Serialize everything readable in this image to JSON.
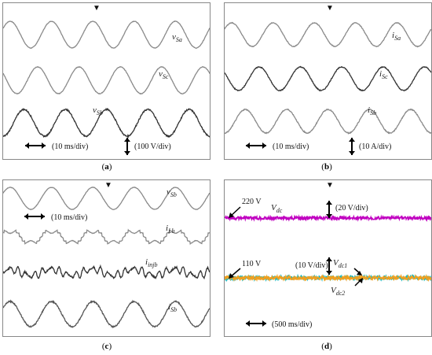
{
  "colors": {
    "gray_trace": "#8a8a8a",
    "dark_trace": "#333333",
    "magenta": "#c000c0",
    "cyan": "#18b8c0",
    "orange": "#f0a020"
  },
  "chart_data": [
    {
      "type": "line",
      "panel": "a",
      "caption_open": "(",
      "caption_letter": "a",
      "caption_close": ")",
      "series": [
        {
          "name": "v",
          "sub": "Sa",
          "shape": "sine",
          "amplitude": 100,
          "cycles": 5,
          "phase": 0.5,
          "color": "#8a8a8a",
          "noise": 0.02
        },
        {
          "name": "v",
          "sub": "Sc",
          "shape": "sine",
          "amplitude": 100,
          "cycles": 5,
          "phase": 2.6,
          "color": "#8a8a8a",
          "noise": 0.02
        },
        {
          "name": "v",
          "sub": "Sb",
          "shape": "sine",
          "amplitude": 100,
          "cycles": 5,
          "phase": 4.7,
          "color": "#333333",
          "noise": 0.05
        }
      ],
      "annotations": [
        "(10 ms/div)",
        "(100 V/div)"
      ],
      "grid": false
    },
    {
      "type": "line",
      "panel": "b",
      "caption_open": "(",
      "caption_letter": "b",
      "caption_close": ")",
      "series": [
        {
          "name": "i",
          "sub": "Sa",
          "shape": "sine",
          "amplitude": 10,
          "cycles": 5,
          "phase": 0.5,
          "color": "#8a8a8a",
          "noise": 0.03
        },
        {
          "name": "i",
          "sub": "Sc",
          "shape": "sine",
          "amplitude": 10,
          "cycles": 5,
          "phase": 2.6,
          "color": "#333333",
          "noise": 0.04
        },
        {
          "name": "i",
          "sub": "Sb",
          "shape": "sine",
          "amplitude": 10,
          "cycles": 5,
          "phase": 4.7,
          "color": "#8a8a8a",
          "noise": 0.04
        }
      ],
      "annotations": [
        "(10 ms/div)",
        "(10 A/div)"
      ],
      "grid": false
    },
    {
      "type": "line",
      "panel": "c",
      "caption_open": "(",
      "caption_letter": "c",
      "caption_close": ")",
      "series": [
        {
          "name": "v",
          "sub": "Sb",
          "shape": "sine",
          "amplitude": 100,
          "cycles": 5,
          "phase": 0.5,
          "color": "#8a8a8a",
          "noise": 0.02
        },
        {
          "name": "i",
          "sub": "Lb",
          "shape": "stepped",
          "amplitude": 10,
          "cycles": 5,
          "phase": 0.5,
          "color": "#8a8a8a",
          "noise": 0.04
        },
        {
          "name": "i",
          "sub": "injb",
          "shape": "ripple",
          "amplitude": 10,
          "cycles": 5,
          "phase": 0.5,
          "color": "#333333",
          "noise": 0.12
        },
        {
          "name": "i",
          "sub": "Sb",
          "shape": "sine",
          "amplitude": 10,
          "cycles": 5,
          "phase": 0.5,
          "color": "#555555",
          "noise": 0.05
        }
      ],
      "annotations": [
        "(10 ms/div)"
      ],
      "grid": false
    },
    {
      "type": "line",
      "panel": "d",
      "caption_open": "(",
      "caption_letter": "d",
      "caption_close": ")",
      "series": [
        {
          "name": "V",
          "sub": "dc",
          "shape": "flat",
          "value": 220,
          "color": "#c000c0",
          "noise": 0.5
        },
        {
          "name": "V",
          "sub": "dc1",
          "shape": "flat",
          "value": 110,
          "color": "#18b8c0",
          "noise": 0.6
        },
        {
          "name": "V",
          "sub": "dc2",
          "shape": "flat",
          "value": 110,
          "color": "#f0a020",
          "noise": 0.6
        }
      ],
      "levels": [
        "220 V",
        "110 V"
      ],
      "annotations": [
        "(20 V/div)",
        "(10 V/div)",
        "(500 ms/div)"
      ],
      "grid": false
    }
  ]
}
